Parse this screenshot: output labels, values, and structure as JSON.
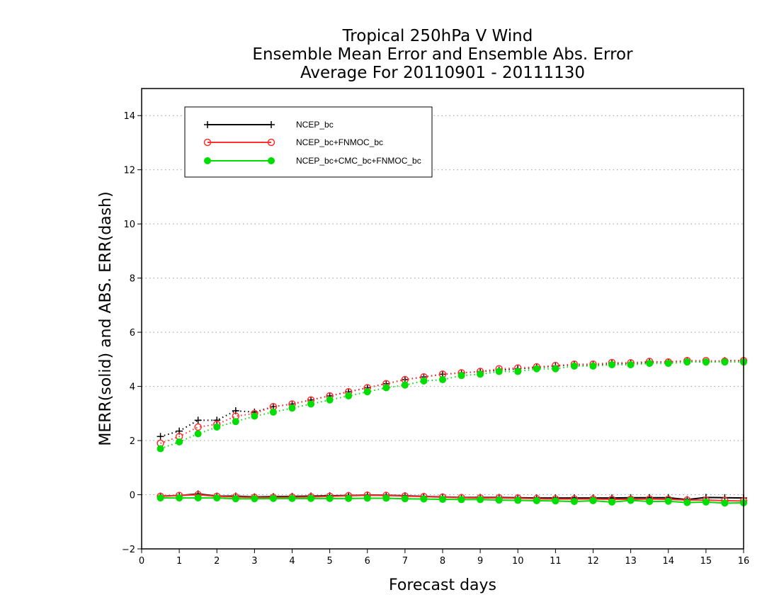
{
  "chart_data": {
    "type": "line",
    "title": [
      "Tropical 250hPa V Wind",
      "Ensemble Mean Error and Ensemble Abs. Error",
      "Average For 20110901 - 20111130"
    ],
    "xlabel": "Forecast days",
    "ylabel": "MERR(solid) and ABS. ERR(dash)",
    "xlim": [
      0,
      16
    ],
    "ylim": [
      -2,
      15
    ],
    "xticks": [
      0,
      1,
      2,
      3,
      4,
      5,
      6,
      7,
      8,
      9,
      10,
      11,
      12,
      13,
      14,
      15,
      16
    ],
    "yticks": [
      -2,
      0,
      2,
      4,
      6,
      8,
      10,
      12,
      14
    ],
    "grid": "horizontal dotted",
    "legend_position": "top-left",
    "x": [
      0.5,
      1,
      1.5,
      2,
      2.5,
      3,
      3.5,
      4,
      4.5,
      5,
      5.5,
      6,
      6.5,
      7,
      7.5,
      8,
      8.5,
      9,
      9.5,
      10,
      10.5,
      11,
      11.5,
      12,
      12.5,
      13,
      13.5,
      14,
      14.5,
      15,
      15.5,
      16
    ],
    "series": [
      {
        "name": "NCEP_bc",
        "color": "#000000",
        "marker": "plus",
        "merr": [
          -0.05,
          -0.03,
          0.03,
          -0.05,
          -0.05,
          -0.08,
          -0.07,
          -0.06,
          -0.05,
          -0.04,
          -0.03,
          -0.01,
          -0.02,
          -0.04,
          -0.06,
          -0.08,
          -0.1,
          -0.1,
          -0.1,
          -0.11,
          -0.12,
          -0.12,
          -0.12,
          -0.12,
          -0.12,
          -0.11,
          -0.11,
          -0.11,
          -0.18,
          -0.1,
          -0.11,
          -0.12
        ],
        "abs_err": [
          2.15,
          2.35,
          2.75,
          2.75,
          3.1,
          3.05,
          3.25,
          3.35,
          3.5,
          3.65,
          3.8,
          3.95,
          4.1,
          4.25,
          4.35,
          4.45,
          4.5,
          4.55,
          4.6,
          4.65,
          4.7,
          4.75,
          4.8,
          4.8,
          4.85,
          4.85,
          4.9,
          4.9,
          4.95,
          4.9,
          4.95,
          4.95
        ]
      },
      {
        "name": "NCEP_bc+FNMOC_bc",
        "color": "#ff3030",
        "marker": "open-circle",
        "merr": [
          -0.06,
          -0.03,
          0.0,
          -0.06,
          -0.08,
          -0.1,
          -0.1,
          -0.09,
          -0.08,
          -0.06,
          -0.04,
          -0.02,
          -0.03,
          -0.05,
          -0.07,
          -0.09,
          -0.11,
          -0.12,
          -0.12,
          -0.13,
          -0.15,
          -0.16,
          -0.16,
          -0.16,
          -0.17,
          -0.17,
          -0.16,
          -0.17,
          -0.2,
          -0.2,
          -0.22,
          -0.23
        ],
        "abs_err": [
          1.9,
          2.15,
          2.5,
          2.6,
          2.9,
          3.0,
          3.25,
          3.35,
          3.5,
          3.65,
          3.8,
          3.95,
          4.1,
          4.25,
          4.35,
          4.45,
          4.5,
          4.55,
          4.65,
          4.68,
          4.72,
          4.77,
          4.82,
          4.82,
          4.88,
          4.87,
          4.92,
          4.9,
          4.95,
          4.95,
          4.93,
          4.95
        ]
      },
      {
        "name": "NCEP_bc+CMC_bc+FNMOC_bc",
        "color": "#00dd00",
        "marker": "filled-circle",
        "merr": [
          -0.12,
          -0.12,
          -0.12,
          -0.12,
          -0.15,
          -0.15,
          -0.14,
          -0.14,
          -0.14,
          -0.14,
          -0.14,
          -0.13,
          -0.13,
          -0.15,
          -0.16,
          -0.17,
          -0.18,
          -0.18,
          -0.2,
          -0.21,
          -0.22,
          -0.23,
          -0.25,
          -0.22,
          -0.27,
          -0.21,
          -0.25,
          -0.24,
          -0.29,
          -0.27,
          -0.31,
          -0.3
        ],
        "abs_err": [
          1.7,
          1.95,
          2.25,
          2.5,
          2.7,
          2.9,
          3.05,
          3.2,
          3.35,
          3.5,
          3.65,
          3.8,
          3.95,
          4.05,
          4.2,
          4.25,
          4.4,
          4.45,
          4.55,
          4.55,
          4.65,
          4.65,
          4.75,
          4.75,
          4.8,
          4.8,
          4.85,
          4.85,
          4.9,
          4.9,
          4.9,
          4.9
        ]
      }
    ]
  }
}
